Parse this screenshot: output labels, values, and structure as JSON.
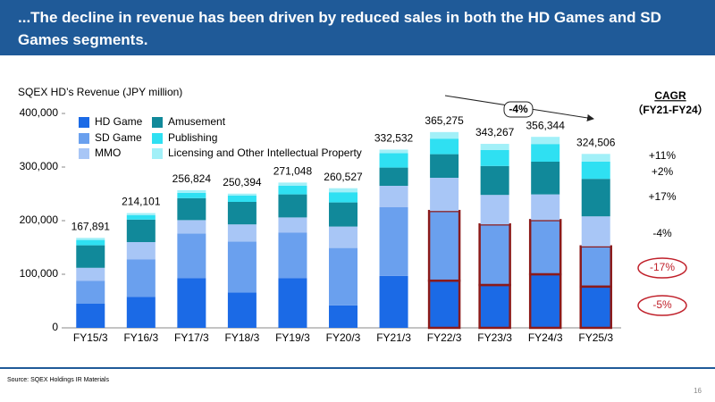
{
  "header": {
    "title": "...The decline in revenue has been driven by reduced sales in both the HD Games and SD Games segments."
  },
  "chart_data": {
    "type": "stacked_bar",
    "title": "SQEX HD’s Revenue (JPY million)",
    "categories": [
      "FY15/3",
      "FY16/3",
      "FY17/3",
      "FY18/3",
      "FY19/3",
      "FY20/3",
      "FY21/3",
      "FY22/3",
      "FY23/3",
      "FY24/3",
      "FY25/3"
    ],
    "series": [
      {
        "name": "HD Game",
        "color": "#1b6ae6",
        "values": [
          45000,
          58000,
          93000,
          66000,
          93000,
          42000,
          97000,
          88000,
          80000,
          100000,
          77000
        ]
      },
      {
        "name": "SD Game",
        "color": "#6aa0ee",
        "values": [
          43000,
          70000,
          83000,
          95000,
          85000,
          107000,
          128000,
          130000,
          113000,
          101000,
          75000
        ]
      },
      {
        "name": "MMO",
        "color": "#a8c6f6",
        "values": [
          24000,
          32000,
          25000,
          32000,
          28000,
          40000,
          40000,
          62000,
          55000,
          48000,
          56000
        ]
      },
      {
        "name": "Amusement",
        "color": "#11899a",
        "values": [
          42000,
          42000,
          41000,
          42000,
          43000,
          45000,
          34000,
          44000,
          54000,
          61000,
          70000
        ]
      },
      {
        "name": "Publishing",
        "color": "#2fe0f2",
        "values": [
          10000,
          8000,
          10000,
          12000,
          16000,
          19000,
          27000,
          29000,
          30000,
          33000,
          32000
        ]
      },
      {
        "name": "Licensing and Other Intellectual Property",
        "color": "#a2f0f8",
        "values": [
          3891,
          4101,
          4824,
          3394,
          6048,
          7527,
          6532,
          12275,
          11267,
          13344,
          14506
        ]
      }
    ],
    "totals": {
      "values": [
        167891,
        214101,
        256824,
        250394,
        271048,
        260527,
        332532,
        365275,
        343267,
        356344,
        324506
      ],
      "value_labels": [
        "167,891",
        "214,101",
        "256,824",
        "250,394",
        "271,048",
        "260,527",
        "332,532",
        "365,275",
        "343,267",
        "356,344",
        "324,506"
      ]
    },
    "ylim": [
      0,
      400000
    ],
    "yticks": [
      0,
      {
        "value": 100000,
        "label": "100,000"
      },
      {
        "value": 200000,
        "label": "200,000"
      },
      {
        "value": 300000,
        "label": "300,000"
      },
      {
        "value": 400000,
        "label": "400,000"
      }
    ],
    "grid": false,
    "highlight": {
      "categories": [
        7,
        8,
        9,
        10
      ],
      "series": [
        0,
        1
      ],
      "color": "#8b1a1a"
    },
    "trend": {
      "value": -4,
      "label": "-4%"
    },
    "cagr": {
      "title": "CAGR",
      "subtitle": "（FY21-FY24）",
      "items": [
        {
          "value": 11,
          "label": "+11%",
          "circled": false
        },
        {
          "value": 2,
          "label": "+2%",
          "circled": false
        },
        {
          "value": 17,
          "label": "+17%",
          "circled": false
        },
        {
          "value": -4,
          "label": "-4%",
          "circled": false
        },
        {
          "value": -17,
          "label": "-17%",
          "circled": true
        },
        {
          "value": -5,
          "label": "-5%",
          "circled": true
        }
      ]
    }
  },
  "footer": {
    "source": "Source: SQEX Holdings IR Materials",
    "page": "16"
  }
}
